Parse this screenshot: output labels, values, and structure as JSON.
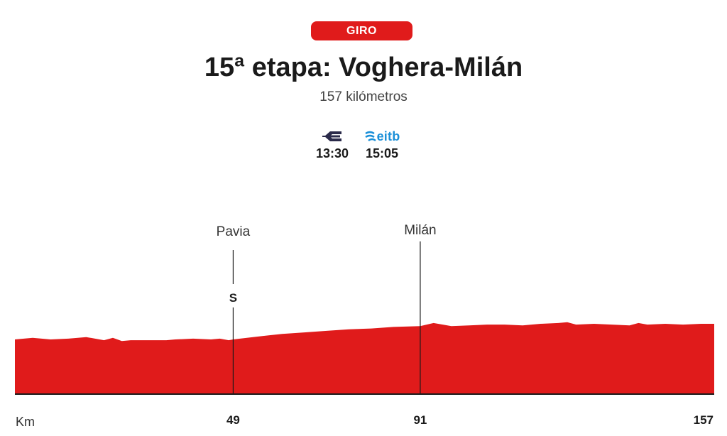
{
  "header": {
    "badge": "GIRO",
    "title": "15ª etapa: Voghera-Milán",
    "subtitle": "157 kilómetros"
  },
  "broadcast": [
    {
      "channel_icon": "euskaltel-e-icon",
      "time": "13:30",
      "color": "#2a2a4a"
    },
    {
      "channel_icon": "eitb-icon",
      "label": "eitb",
      "time": "15:05",
      "color": "#1a8fd8"
    }
  ],
  "chart_data": {
    "type": "area",
    "title": "15ª etapa: Voghera-Milán",
    "xlabel": "Km",
    "ylabel": "",
    "xlim": [
      0,
      157
    ],
    "color": "#e01b1b",
    "x": [
      0,
      4,
      8,
      12,
      16,
      20,
      22,
      24,
      26,
      28,
      30,
      32,
      34,
      36,
      40,
      44,
      46,
      48,
      49,
      55,
      60,
      65,
      70,
      75,
      80,
      85,
      91,
      94,
      98,
      102,
      106,
      110,
      114,
      118,
      122,
      124,
      126,
      130,
      134,
      138,
      140,
      142,
      146,
      150,
      154,
      157
    ],
    "elevation": [
      70,
      72,
      70,
      71,
      73,
      69,
      72,
      68,
      69,
      69,
      69,
      69,
      69,
      70,
      71,
      70,
      71,
      69,
      70,
      74,
      77,
      79,
      81,
      83,
      84,
      86,
      87,
      91,
      87,
      88,
      89,
      89,
      88,
      90,
      91,
      92,
      89,
      90,
      89,
      88,
      91,
      89,
      90,
      89,
      90,
      90
    ],
    "x_ticks": [
      49,
      91,
      157
    ],
    "waypoints": [
      {
        "km": 49,
        "name": "Pavia",
        "marker": "S"
      },
      {
        "km": 91,
        "name": "Milán",
        "marker": ""
      }
    ]
  }
}
